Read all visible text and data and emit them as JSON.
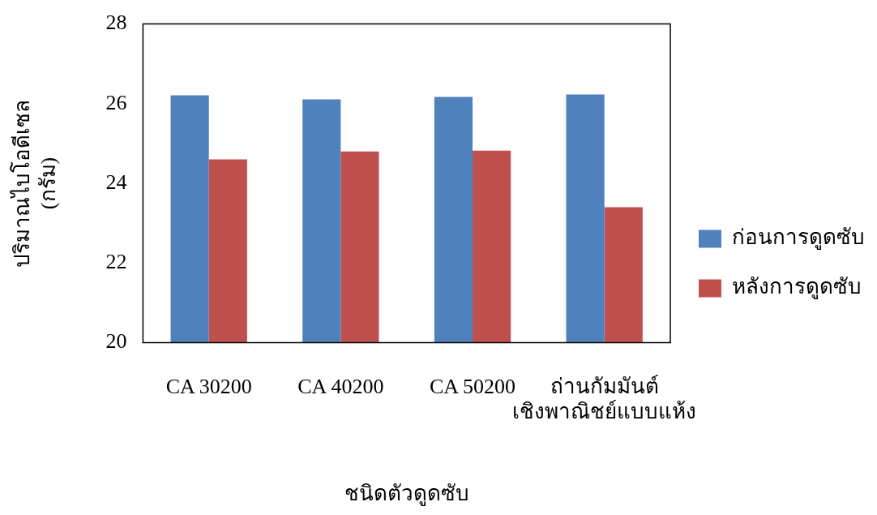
{
  "chart_data": {
    "type": "bar",
    "xlabel": "ชนิดตัวดูดซับ",
    "ylabel": "ปริมาณไบโอดีเซล\n(กรัม)",
    "categories": [
      "CA 30200",
      "CA 40200",
      "CA 50200",
      "ถ่านกัมมันต์\nเชิงพาณิชย์แบบแห้ง"
    ],
    "series": [
      {
        "name": "ก่อนการดูดซับ",
        "color": "#4f81bd",
        "values": [
          26.21,
          26.11,
          26.17,
          26.23
        ]
      },
      {
        "name": "หลังการดูดซับ",
        "color": "#c0504d",
        "values": [
          24.6,
          24.8,
          24.82,
          23.4
        ]
      }
    ],
    "ylim": [
      20,
      28
    ],
    "yticks": [
      20,
      22,
      24,
      26,
      28
    ],
    "grid": false,
    "legend": "right"
  }
}
